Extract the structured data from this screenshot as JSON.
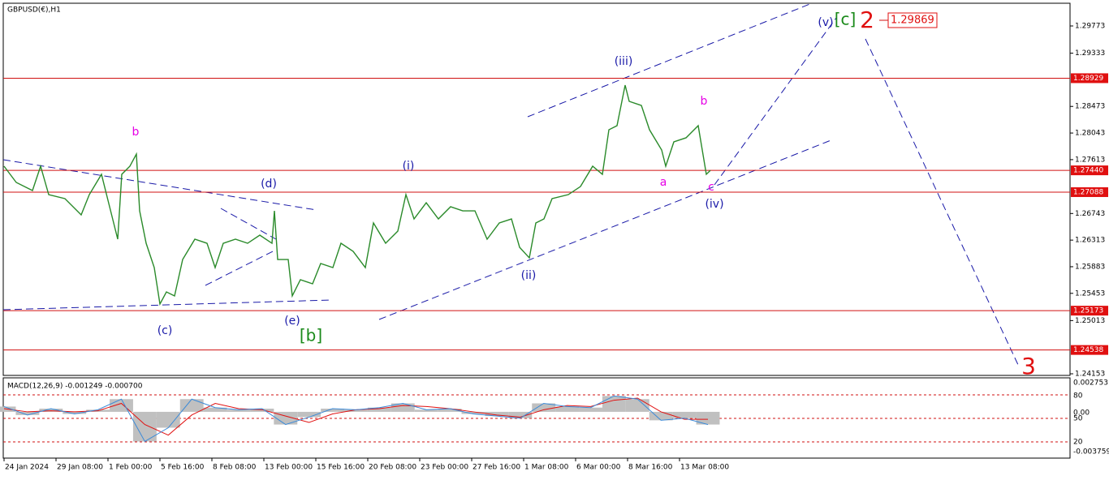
{
  "header": "GBPUSD(€),H1",
  "price_chart": {
    "type": "line",
    "ylim": [
      1.24127,
      1.3014
    ],
    "yticks": [
      1.29773,
      1.29333,
      1.28473,
      1.28043,
      1.27613,
      1.26743,
      1.26313,
      1.25883,
      1.25453,
      1.25013,
      1.24153
    ],
    "levels": [
      {
        "value": 1.28929,
        "label": "1.28929"
      },
      {
        "value": 1.2744,
        "label": "1.27440"
      },
      {
        "value": 1.27088,
        "label": "1.27088"
      },
      {
        "value": 1.25173,
        "label": "1.25173"
      },
      {
        "value": 1.24538,
        "label": "1.24538"
      }
    ],
    "target_label": "1.29869",
    "x": [
      0,
      15,
      35,
      45,
      55,
      75,
      95,
      105,
      120,
      130,
      140,
      145,
      155,
      163,
      167,
      175,
      185,
      192,
      200,
      210,
      220,
      235,
      250,
      260,
      270,
      285,
      300,
      315,
      330,
      333,
      337,
      350,
      355,
      365,
      380,
      390,
      405,
      415,
      430,
      445,
      455,
      470,
      485,
      495,
      505,
      520,
      535,
      550,
      565,
      580,
      595,
      610,
      625,
      635,
      647,
      655,
      665,
      675,
      695,
      710,
      725,
      737,
      745,
      755,
      765,
      770,
      785,
      795,
      810,
      815,
      825,
      840,
      855,
      860,
      865,
      870
    ],
    "values": [
      1.27507,
      1.27245,
      1.27114,
      1.27507,
      1.27048,
      1.26983,
      1.26721,
      1.27048,
      1.27376,
      1.26852,
      1.26328,
      1.27376,
      1.27507,
      1.27703,
      1.26786,
      1.26262,
      1.25869,
      1.2528,
      1.25476,
      1.25411,
      1.26,
      1.26328,
      1.26262,
      1.25869,
      1.26262,
      1.26328,
      1.26262,
      1.26393,
      1.26262,
      1.26786,
      1.26,
      1.26,
      1.25411,
      1.25673,
      1.25607,
      1.25935,
      1.25869,
      1.26262,
      1.26131,
      1.25869,
      1.2659,
      1.26262,
      1.26459,
      1.27048,
      1.26655,
      1.26917,
      1.26655,
      1.26852,
      1.26786,
      1.26786,
      1.26328,
      1.2659,
      1.26655,
      1.26197,
      1.26026,
      1.2659,
      1.26655,
      1.26983,
      1.27048,
      1.27179,
      1.27507,
      1.27376,
      1.28096,
      1.28162,
      1.28817,
      1.28555,
      1.28489,
      1.28096,
      1.27769,
      1.27507,
      1.279,
      1.27966,
      1.28162,
      1.27769,
      1.27376,
      1.2744
    ],
    "waves": [
      {
        "text": "b",
        "color": "#e600e6"
      },
      {
        "text": "(c)",
        "color": "#1a1aa8"
      },
      {
        "text": "(d)",
        "color": "#1a1aa8"
      },
      {
        "text": "(e)",
        "color": "#1a1aa8"
      },
      {
        "text": "[b]",
        "color": "#1a8a1a"
      },
      {
        "text": "(i)",
        "color": "#1a1aa8"
      },
      {
        "text": "(ii)",
        "color": "#1a1aa8"
      },
      {
        "text": "(iii)",
        "color": "#1a1aa8"
      },
      {
        "text": "a",
        "color": "#e600e6"
      },
      {
        "text": "b",
        "color": "#e600e6"
      },
      {
        "text": "c",
        "color": "#e600e6"
      },
      {
        "text": "(iv)",
        "color": "#1a1aa8"
      },
      {
        "text": "(v)",
        "color": "#1a1aa8"
      },
      {
        "text": "[c]",
        "color": "#1a8a1a"
      },
      {
        "text": "2",
        "color": "#e01010"
      },
      {
        "text": "3",
        "color": "#e01010"
      }
    ]
  },
  "dates": [
    "24 Jan 2024",
    "29 Jan 08:00",
    "1 Feb 00:00",
    "5 Feb 16:00",
    "8 Feb 08:00",
    "13 Feb 00:00",
    "15 Feb 16:00",
    "20 Feb 08:00",
    "23 Feb 00:00",
    "27 Feb 16:00",
    "1 Mar 08:00",
    "6 Mar 00:00",
    "8 Mar 16:00",
    "13 Mar 08:00"
  ],
  "macd": {
    "title": "MACD(12,26,9) -0.001249 -0.000700",
    "ylim": [
      -0.003759,
      0.002753
    ],
    "axis_labels": [
      "0.002753",
      "80",
      "0.00",
      "50",
      "20",
      "-0.003759"
    ],
    "values": [
      0.0005,
      -0.0003,
      0.0003,
      -0.0002,
      0.0002,
      0.0012,
      -0.0028,
      -0.0015,
      0.0012,
      0.0004,
      0.0002,
      0.0003,
      -0.0012,
      -0.0005,
      0.0003,
      0.0002,
      0.0004,
      0.0008,
      0.0002,
      0.0003,
      -0.0002,
      -0.0004,
      -0.0006,
      0.0008,
      0.0005,
      0.0004,
      0.0015,
      0.0012,
      -0.0008,
      -0.0006,
      -0.0012
    ],
    "signal": [
      0.0003,
      0,
      0.0001,
      0,
      0.0001,
      0.0008,
      -0.0012,
      -0.0022,
      -0.0003,
      0.0008,
      0.0003,
      0.0002,
      -0.0004,
      -0.001,
      -0.0002,
      0.0002,
      0.0003,
      0.0006,
      0.0005,
      0.0003,
      0,
      -0.0003,
      -0.0005,
      0.0002,
      0.0006,
      0.0005,
      0.0011,
      0.0013,
      0,
      -0.0007,
      -0.0007
    ]
  }
}
